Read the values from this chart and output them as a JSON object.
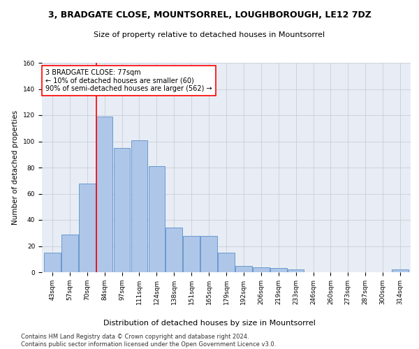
{
  "title": "3, BRADGATE CLOSE, MOUNTSORREL, LOUGHBOROUGH, LE12 7DZ",
  "subtitle": "Size of property relative to detached houses in Mountsorrel",
  "xlabel": "Distribution of detached houses by size in Mountsorrel",
  "ylabel": "Number of detached properties",
  "categories": [
    "43sqm",
    "57sqm",
    "70sqm",
    "84sqm",
    "97sqm",
    "111sqm",
    "124sqm",
    "138sqm",
    "151sqm",
    "165sqm",
    "179sqm",
    "192sqm",
    "206sqm",
    "219sqm",
    "233sqm",
    "246sqm",
    "260sqm",
    "273sqm",
    "287sqm",
    "300sqm",
    "314sqm"
  ],
  "values": [
    15,
    29,
    68,
    119,
    95,
    101,
    81,
    34,
    28,
    28,
    15,
    5,
    4,
    3,
    2,
    0,
    0,
    0,
    0,
    0,
    2
  ],
  "bar_color": "#aec6e8",
  "bar_edge_color": "#5b8fc9",
  "grid_color": "#c8cfd8",
  "bg_color": "#e8edf5",
  "vline_color": "red",
  "vline_x": 2.55,
  "annotation_text": "3 BRADGATE CLOSE: 77sqm\n← 10% of detached houses are smaller (60)\n90% of semi-detached houses are larger (562) →",
  "annotation_box_color": "white",
  "annotation_edge_color": "red",
  "ylim": [
    0,
    160
  ],
  "yticks": [
    0,
    20,
    40,
    60,
    80,
    100,
    120,
    140,
    160
  ],
  "footnote": "Contains HM Land Registry data © Crown copyright and database right 2024.\nContains public sector information licensed under the Open Government Licence v3.0.",
  "title_fontsize": 9,
  "subtitle_fontsize": 8,
  "xlabel_fontsize": 8,
  "ylabel_fontsize": 7.5,
  "tick_fontsize": 6.5,
  "footnote_fontsize": 6,
  "annot_fontsize": 7
}
